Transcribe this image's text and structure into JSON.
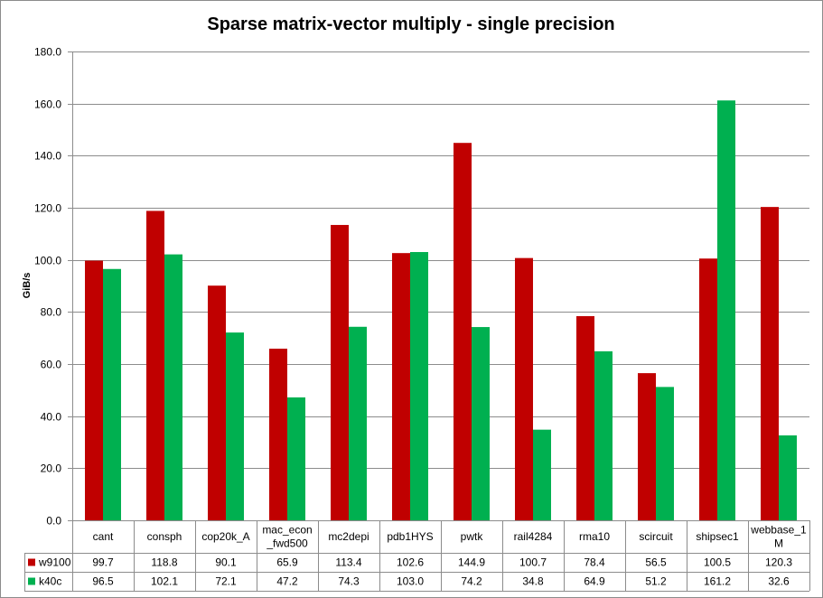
{
  "colors": {
    "w9100": "#c00000",
    "k40c": "#00b050",
    "grid": "#8c8c8c",
    "border": "#8c8c8c"
  },
  "chart_data": {
    "type": "bar",
    "title": "Sparse matrix-vector multiply - single precision",
    "ylabel": "GiB/s",
    "xlabel": "",
    "ylim": [
      0,
      180
    ],
    "yticks": [
      "0.0",
      "20.0",
      "40.0",
      "60.0",
      "80.0",
      "100.0",
      "120.0",
      "140.0",
      "160.0",
      "180.0"
    ],
    "grid": true,
    "legend": "data-table",
    "categories": [
      "cant",
      "consph",
      "cop20k_A",
      "mac_econ_fwd500",
      "mc2depi",
      "pdb1HYS",
      "pwtk",
      "rail4284",
      "rma10",
      "scircuit",
      "shipsec1",
      "webbase_1M"
    ],
    "category_lines": [
      [
        "cant"
      ],
      [
        "consph"
      ],
      [
        "cop20k_A"
      ],
      [
        "mac_econ",
        "_fwd500"
      ],
      [
        "mc2depi"
      ],
      [
        "pdb1HYS"
      ],
      [
        "pwtk"
      ],
      [
        "rail4284"
      ],
      [
        "rma10"
      ],
      [
        "scircuit"
      ],
      [
        "shipsec1"
      ],
      [
        "webbase_1",
        "M"
      ]
    ],
    "series": [
      {
        "name": "w9100",
        "color": "#c00000",
        "values": [
          99.7,
          118.8,
          90.1,
          65.9,
          113.4,
          102.6,
          144.9,
          100.7,
          78.4,
          56.5,
          100.5,
          120.3
        ],
        "labels": [
          "99.7",
          "118.8",
          "90.1",
          "65.9",
          "113.4",
          "102.6",
          "144.9",
          "100.7",
          "78.4",
          "56.5",
          "100.5",
          "120.3"
        ]
      },
      {
        "name": "k40c",
        "color": "#00b050",
        "values": [
          96.5,
          102.1,
          72.1,
          47.2,
          74.3,
          103.0,
          74.2,
          34.8,
          64.9,
          51.2,
          161.2,
          32.6
        ],
        "labels": [
          "96.5",
          "102.1",
          "72.1",
          "47.2",
          "74.3",
          "103.0",
          "74.2",
          "34.8",
          "64.9",
          "51.2",
          "161.2",
          "32.6"
        ]
      }
    ]
  }
}
